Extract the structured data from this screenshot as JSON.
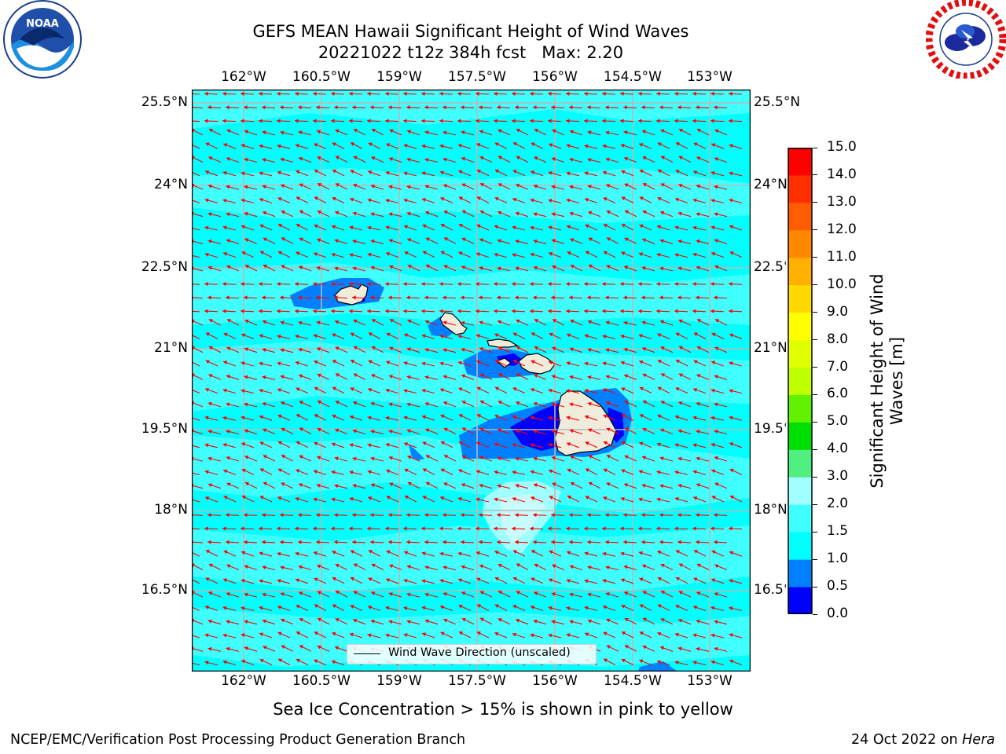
{
  "title_line1": "GEFS MEAN Hawaii Significant Height of Wind Waves",
  "title_line2": "20221022 t12z 384h fcst   Max: 2.20",
  "subtitle": "Sea Ice Concentration > 15% is shown in pink to yellow",
  "footer_left": "NCEP/EMC/Verification Post Processing Product Generation Branch",
  "footer_right_prefix": "24 Oct 2022 on ",
  "footer_right_host": "Hera",
  "logos": {
    "left": "noaa-logo",
    "right": "national-weather-service-logo"
  },
  "map": {
    "lon_labels": [
      "162°W",
      "160.5°W",
      "159°W",
      "157.5°W",
      "156°W",
      "154.5°W",
      "153°W"
    ],
    "lat_labels": [
      "25.5°N",
      "24°N",
      "22.5°N",
      "21°N",
      "19.5°N",
      "18°N",
      "16.5°N"
    ],
    "grid_lines": true,
    "ocean_color": "#00ffff",
    "land_color": "#f0ecdc",
    "arrow_color": "#ff0000",
    "legend_label": "Wind Wave Direction (unscaled)"
  },
  "colorbar": {
    "title": "Significant Height of Wind Waves [m]",
    "ticks": [
      "0.0",
      "0.5",
      "1.0",
      "1.5",
      "2.0",
      "3.0",
      "4.0",
      "5.0",
      "6.0",
      "7.0",
      "8.0",
      "9.0",
      "10.0",
      "11.0",
      "12.0",
      "13.0",
      "14.0",
      "15.0"
    ],
    "colors": [
      "#0000ff",
      "#0080ff",
      "#00ffff",
      "#40ffff",
      "#a0ffff",
      "#50f080",
      "#00e000",
      "#60f000",
      "#c0ff00",
      "#e0ff00",
      "#ffff00",
      "#ffd800",
      "#ffb000",
      "#ff8800",
      "#ff5c00",
      "#ff3000",
      "#ff0000"
    ]
  }
}
